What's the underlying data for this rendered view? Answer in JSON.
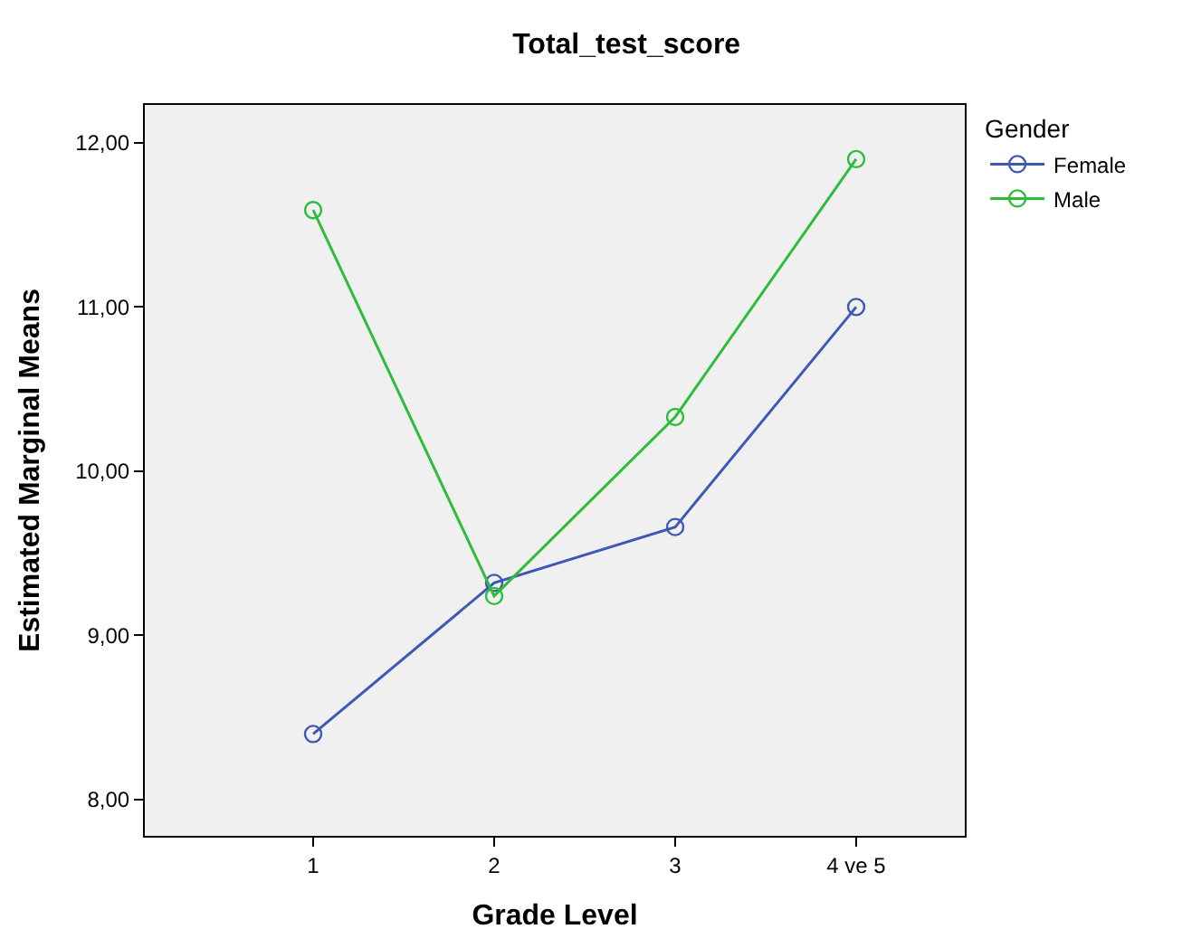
{
  "chart_data": {
    "type": "line",
    "title": "Total_test_score",
    "xlabel": "Grade Level",
    "ylabel": "Estimated Marginal Means",
    "legend_title": "Gender",
    "categories": [
      "1",
      "2",
      "3",
      "4 ve 5"
    ],
    "series": [
      {
        "name": "Female",
        "color": "#3f58b6",
        "values": [
          8.4,
          9.32,
          9.66,
          11.0
        ]
      },
      {
        "name": "Male",
        "color": "#2ebd3a",
        "values": [
          11.59,
          9.24,
          10.33,
          11.9
        ]
      }
    ],
    "ylim": [
      7.78,
      12.23
    ],
    "yticks": [
      {
        "value": 8,
        "label": "8,00"
      },
      {
        "value": 9,
        "label": "9,00"
      },
      {
        "value": 10,
        "label": "10,00"
      },
      {
        "value": 11,
        "label": "11,00"
      },
      {
        "value": 12,
        "label": "12,00"
      }
    ],
    "grid": false,
    "legend": "top right",
    "marker": "circle",
    "line_style": "solid"
  }
}
